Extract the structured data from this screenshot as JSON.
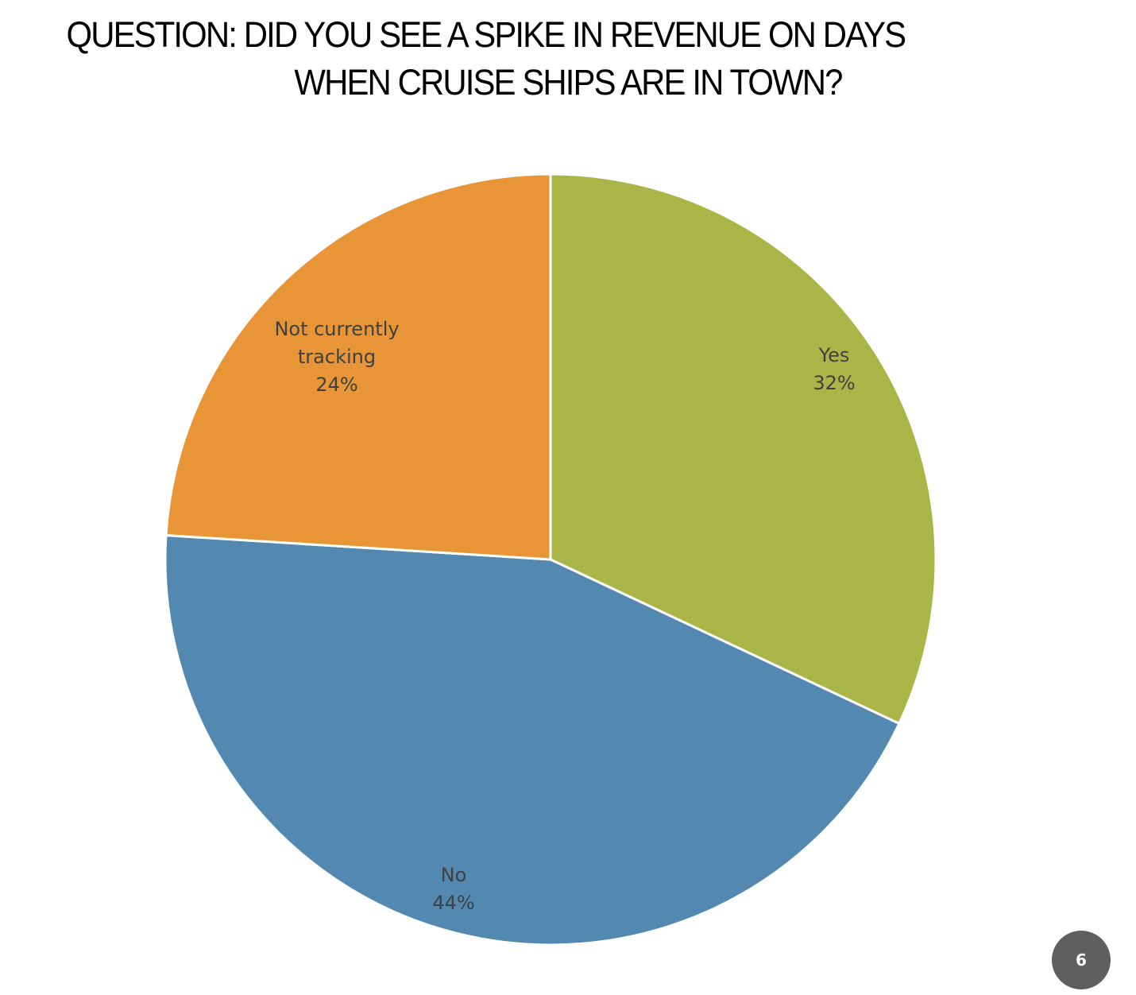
{
  "slide": {
    "title_line1": "QUESTION: DID YOU SEE A SPIKE IN REVENUE ON DAYS",
    "title_line2": "WHEN CRUISE SHIPS ARE IN TOWN?",
    "page_number": "6"
  },
  "labels": {
    "yes": {
      "name": "Yes",
      "pct": "32%"
    },
    "no": {
      "name": "No",
      "pct": "44%"
    },
    "not_tracking": {
      "name_line1": "Not currently",
      "name_line2": "tracking",
      "pct": "24%"
    }
  },
  "colors": {
    "yes": "#AAB548",
    "no": "#5389B0",
    "not_tracking": "#E79537",
    "label_text": "#404040",
    "badge": "#5F5F5F"
  },
  "chart_data": {
    "type": "pie",
    "title": "QUESTION: DID YOU SEE A SPIKE IN REVENUE ON DAYS WHEN CRUISE SHIPS ARE IN TOWN?",
    "categories": [
      "Yes",
      "No",
      "Not currently tracking"
    ],
    "values": [
      32,
      44,
      24
    ],
    "unit": "%",
    "start_angle": "12 o'clock, clockwise",
    "legend": "none (data labels inside slices)"
  }
}
